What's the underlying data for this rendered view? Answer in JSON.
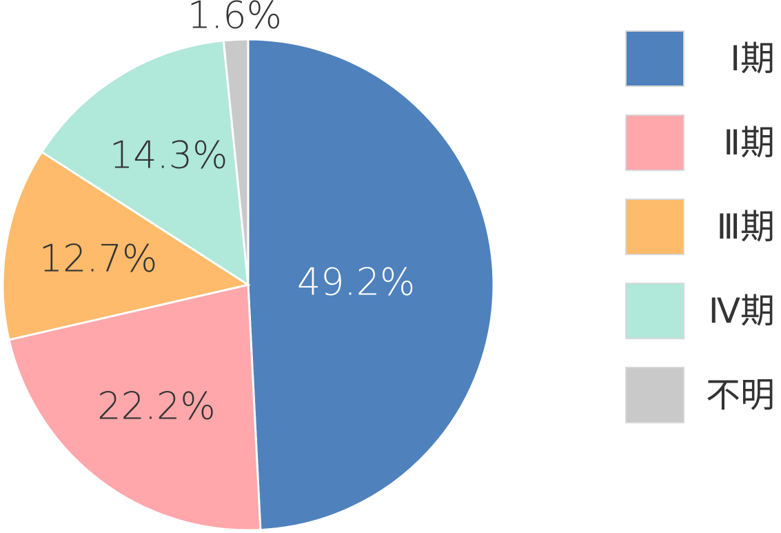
{
  "chart_data": {
    "type": "pie",
    "title": "",
    "categories": [
      "Ⅰ期",
      "Ⅱ期",
      "Ⅲ期",
      "Ⅳ期",
      "不明"
    ],
    "values": [
      49.2,
      22.2,
      12.7,
      14.3,
      1.6
    ],
    "value_labels": [
      "49.2%",
      "22.2%",
      "12.7%",
      "14.3%",
      "1.6%"
    ],
    "colors": [
      "#4f81bd",
      "#ffa7ab",
      "#fdbb6b",
      "#b0e8da",
      "#c9c9c9"
    ],
    "label_colors": [
      "#ffffff",
      "#333333",
      "#333333",
      "#333333",
      "#333333"
    ],
    "start": "12 o'clock",
    "direction": "clockwise",
    "legend_position": "right"
  }
}
